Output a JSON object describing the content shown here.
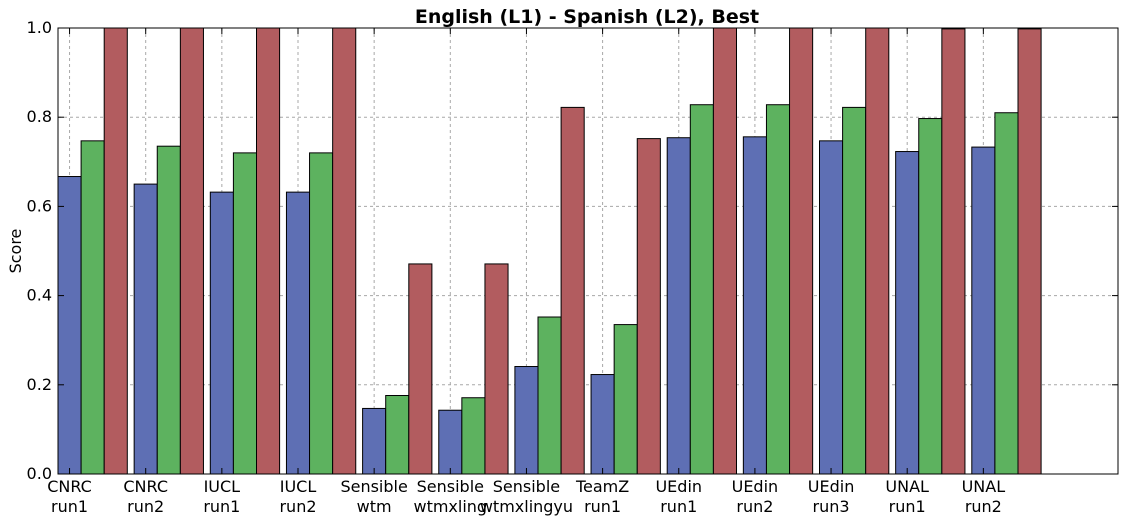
{
  "chart_data": {
    "type": "bar",
    "title": "English (L1) - Spanish (L2), Best",
    "xlabel": "",
    "ylabel": "Score",
    "ylim": [
      0,
      1.0
    ],
    "yticks": [
      "0.0",
      "0.2",
      "0.4",
      "0.6",
      "0.8",
      "1.0"
    ],
    "grid": true,
    "categories": [
      [
        "CNRC",
        "run1"
      ],
      [
        "CNRC",
        "run2"
      ],
      [
        "IUCL",
        "run1"
      ],
      [
        "IUCL",
        "run2"
      ],
      [
        "Sensible",
        "wtm"
      ],
      [
        "Sensible",
        "wtmxling"
      ],
      [
        "Sensible",
        "wtmxlingyu"
      ],
      [
        "TeamZ",
        "run1"
      ],
      [
        "UEdin",
        "run1"
      ],
      [
        "UEdin",
        "run2"
      ],
      [
        "UEdin",
        "run3"
      ],
      [
        "UNAL",
        "run1"
      ],
      [
        "UNAL",
        "run2"
      ]
    ],
    "series": [
      {
        "color": "#5e6fb4",
        "values": [
          0.667,
          0.65,
          0.632,
          0.632,
          0.147,
          0.143,
          0.241,
          0.223,
          0.754,
          0.756,
          0.747,
          0.723,
          0.733
        ]
      },
      {
        "color": "#5db25f",
        "values": [
          0.747,
          0.735,
          0.72,
          0.72,
          0.176,
          0.171,
          0.352,
          0.335,
          0.828,
          0.828,
          0.822,
          0.797,
          0.81
        ]
      },
      {
        "color": "#b25c5f",
        "values": [
          1.0,
          1.0,
          1.0,
          1.0,
          0.471,
          0.471,
          0.822,
          0.752,
          1.0,
          1.0,
          1.0,
          0.998,
          0.998
        ]
      }
    ]
  }
}
